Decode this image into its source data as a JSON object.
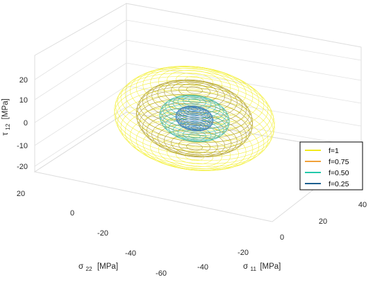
{
  "chart_data": {
    "type": "wireframe-3d",
    "view": "3d-perspective",
    "grid": true,
    "legend_placement": "right",
    "axes": {
      "x": {
        "var": "σ",
        "sub": "11",
        "unit": "[MPa]",
        "ticks": [
          "-40",
          "-20",
          "0",
          "20",
          "40"
        ],
        "range": [
          -50,
          45
        ]
      },
      "y": {
        "var": "σ",
        "sub": "22",
        "unit": "[MPa]",
        "ticks": [
          "20",
          "0",
          "-20",
          "-40",
          "-60"
        ],
        "range": [
          -62,
          32
        ]
      },
      "z": {
        "var": "τ",
        "sub": "12",
        "unit": "[MPa]",
        "ticks": [
          "20",
          "10",
          "0",
          "-10",
          "-20"
        ],
        "range": [
          -25,
          25
        ]
      }
    },
    "series": [
      {
        "name": "f=1",
        "color": "#f2ee1d",
        "rx": 55,
        "ry": 44,
        "rz": 24
      },
      {
        "name": "f=0.75",
        "color": "#ad9a22",
        "rx": 40,
        "ry": 32,
        "rz": 18
      },
      {
        "name": "f=0.50",
        "color": "#2fb5a4",
        "rx": 24,
        "ry": 19,
        "rz": 11
      },
      {
        "name": "f=0.25",
        "color": "#2a6fbc",
        "rx": 13,
        "ry": 10,
        "rz": 6
      }
    ],
    "legend": {
      "entries": [
        "f=1",
        "f=0.75",
        "f=0.50",
        "f=0.25"
      ],
      "colors": [
        "#f2e91c",
        "#f0a13a",
        "#22c9aa",
        "#1c5f8f"
      ]
    }
  }
}
